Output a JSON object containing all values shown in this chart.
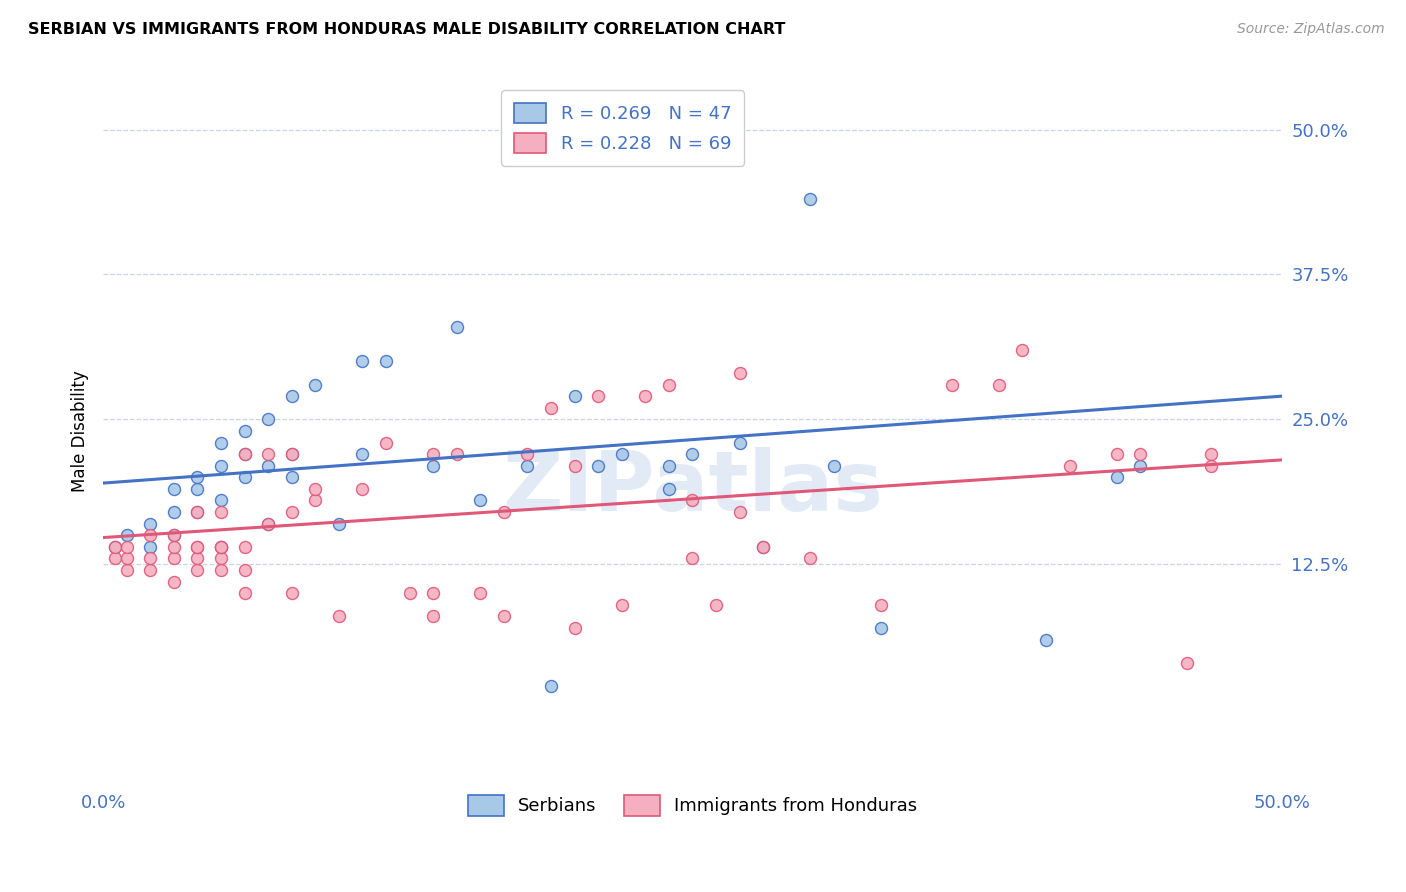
{
  "title": "SERBIAN VS IMMIGRANTS FROM HONDURAS MALE DISABILITY CORRELATION CHART",
  "source": "Source: ZipAtlas.com",
  "ylabel": "Male Disability",
  "ytick_labels": [
    "12.5%",
    "25.0%",
    "37.5%",
    "50.0%"
  ],
  "ytick_values": [
    0.125,
    0.25,
    0.375,
    0.5
  ],
  "xlim": [
    0.0,
    0.5
  ],
  "ylim": [
    -0.065,
    0.545
  ],
  "legend_r1": "R = 0.269",
  "legend_n1": "N = 47",
  "legend_r2": "R = 0.228",
  "legend_n2": "N = 69",
  "color_serbian": "#a8c8e8",
  "color_honduras": "#f4b0c0",
  "color_serbian_line": "#4472c4",
  "color_honduras_line": "#e05878",
  "color_axis_labels": "#4472c4",
  "serbian_x": [
    0.005,
    0.01,
    0.02,
    0.02,
    0.03,
    0.03,
    0.03,
    0.04,
    0.04,
    0.04,
    0.05,
    0.05,
    0.05,
    0.05,
    0.06,
    0.06,
    0.06,
    0.07,
    0.07,
    0.07,
    0.08,
    0.08,
    0.08,
    0.09,
    0.1,
    0.11,
    0.11,
    0.12,
    0.14,
    0.15,
    0.16,
    0.18,
    0.19,
    0.2,
    0.21,
    0.22,
    0.24,
    0.24,
    0.25,
    0.27,
    0.28,
    0.3,
    0.31,
    0.33,
    0.4,
    0.43,
    0.44
  ],
  "serbian_y": [
    0.14,
    0.15,
    0.14,
    0.16,
    0.15,
    0.17,
    0.19,
    0.17,
    0.19,
    0.2,
    0.14,
    0.18,
    0.21,
    0.23,
    0.2,
    0.22,
    0.24,
    0.16,
    0.21,
    0.25,
    0.2,
    0.22,
    0.27,
    0.28,
    0.16,
    0.22,
    0.3,
    0.3,
    0.21,
    0.33,
    0.18,
    0.21,
    0.02,
    0.27,
    0.21,
    0.22,
    0.19,
    0.21,
    0.22,
    0.23,
    0.14,
    0.44,
    0.21,
    0.07,
    0.06,
    0.2,
    0.21
  ],
  "honduras_x": [
    0.005,
    0.005,
    0.01,
    0.01,
    0.01,
    0.02,
    0.02,
    0.02,
    0.03,
    0.03,
    0.03,
    0.03,
    0.04,
    0.04,
    0.04,
    0.04,
    0.04,
    0.05,
    0.05,
    0.05,
    0.05,
    0.05,
    0.06,
    0.06,
    0.06,
    0.06,
    0.07,
    0.07,
    0.08,
    0.08,
    0.08,
    0.09,
    0.09,
    0.1,
    0.11,
    0.12,
    0.13,
    0.14,
    0.14,
    0.14,
    0.15,
    0.16,
    0.17,
    0.17,
    0.18,
    0.19,
    0.2,
    0.2,
    0.21,
    0.22,
    0.23,
    0.24,
    0.25,
    0.25,
    0.26,
    0.27,
    0.27,
    0.28,
    0.3,
    0.33,
    0.36,
    0.38,
    0.39,
    0.41,
    0.43,
    0.44,
    0.46,
    0.47,
    0.47
  ],
  "honduras_y": [
    0.13,
    0.14,
    0.12,
    0.13,
    0.14,
    0.12,
    0.13,
    0.15,
    0.11,
    0.13,
    0.14,
    0.15,
    0.12,
    0.13,
    0.14,
    0.14,
    0.17,
    0.12,
    0.13,
    0.14,
    0.14,
    0.17,
    0.1,
    0.12,
    0.14,
    0.22,
    0.16,
    0.22,
    0.1,
    0.17,
    0.22,
    0.18,
    0.19,
    0.08,
    0.19,
    0.23,
    0.1,
    0.08,
    0.22,
    0.1,
    0.22,
    0.1,
    0.08,
    0.17,
    0.22,
    0.26,
    0.07,
    0.21,
    0.27,
    0.09,
    0.27,
    0.28,
    0.13,
    0.18,
    0.09,
    0.17,
    0.29,
    0.14,
    0.13,
    0.09,
    0.28,
    0.28,
    0.31,
    0.21,
    0.22,
    0.22,
    0.04,
    0.22,
    0.21
  ],
  "serbian_line_y_start": 0.195,
  "serbian_line_y_end": 0.27,
  "honduras_line_y_start": 0.148,
  "honduras_line_y_end": 0.215,
  "watermark_text": "ZIPatlas",
  "background_color": "#ffffff",
  "grid_color": "#c8d4e8",
  "marker_size": 75
}
